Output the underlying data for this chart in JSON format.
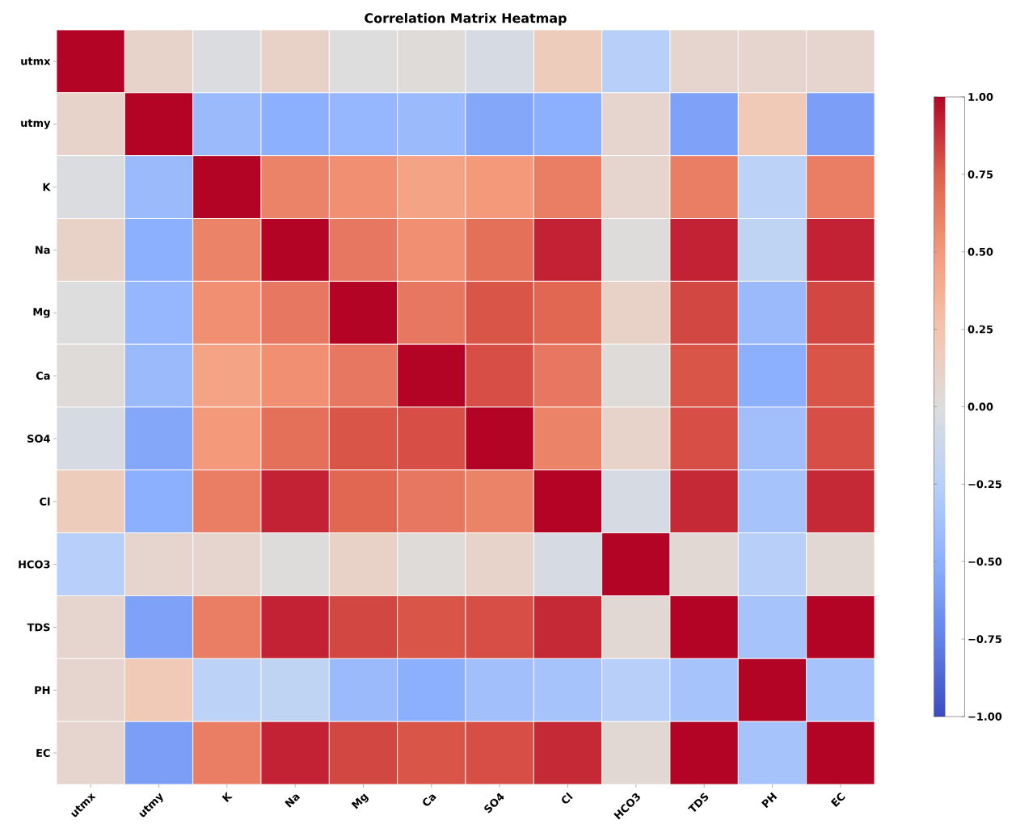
{
  "chart_data": {
    "type": "heatmap",
    "title": "Correlation Matrix Heatmap",
    "categories": [
      "utmx",
      "utmy",
      "K",
      "Na",
      "Mg",
      "Ca",
      "SO4",
      "Cl",
      "HCO3",
      "TDS",
      "PH",
      "EC"
    ],
    "y_categories": [
      "utmx",
      "utmy",
      "K",
      "Na",
      "Mg",
      "Ca",
      "SO4",
      "Cl",
      "HCO3",
      "TDS",
      "PH",
      "EC"
    ],
    "cells": [
      [
        1,
        0.1,
        -0.02,
        0.12,
        0.0,
        0.02,
        -0.05,
        0.17,
        -0.25,
        0.08,
        0.08,
        0.08
      ],
      [
        0.1,
        1,
        -0.42,
        -0.5,
        -0.45,
        -0.42,
        -0.55,
        -0.5,
        0.08,
        -0.58,
        0.2,
        -0.6
      ],
      [
        -0.02,
        -0.42,
        1,
        0.6,
        0.55,
        0.45,
        0.5,
        0.62,
        0.08,
        0.62,
        -0.22,
        0.62
      ],
      [
        0.12,
        -0.5,
        0.6,
        1,
        0.65,
        0.55,
        0.68,
        0.92,
        0.01,
        0.92,
        -0.2,
        0.92
      ],
      [
        0.0,
        -0.45,
        0.55,
        0.65,
        1,
        0.65,
        0.78,
        0.72,
        0.12,
        0.82,
        -0.42,
        0.82
      ],
      [
        0.02,
        -0.42,
        0.45,
        0.55,
        0.65,
        1,
        0.8,
        0.65,
        0.02,
        0.78,
        -0.5,
        0.78
      ],
      [
        -0.05,
        -0.55,
        0.5,
        0.68,
        0.78,
        0.8,
        1,
        0.6,
        0.1,
        0.8,
        -0.38,
        0.8
      ],
      [
        0.17,
        -0.5,
        0.62,
        0.92,
        0.72,
        0.65,
        0.6,
        1,
        -0.05,
        0.9,
        -0.35,
        0.9
      ],
      [
        -0.25,
        0.08,
        0.08,
        0.01,
        0.12,
        0.02,
        0.1,
        -0.05,
        1,
        0.05,
        -0.25,
        0.05
      ],
      [
        0.08,
        -0.58,
        0.62,
        0.92,
        0.82,
        0.78,
        0.8,
        0.9,
        0.05,
        1,
        -0.35,
        1
      ],
      [
        0.08,
        0.2,
        -0.22,
        -0.2,
        -0.42,
        -0.5,
        -0.38,
        -0.35,
        -0.25,
        -0.35,
        1,
        -0.35
      ],
      [
        0.08,
        -0.6,
        0.62,
        0.92,
        0.82,
        0.78,
        0.8,
        0.9,
        0.05,
        1,
        -0.35,
        1
      ]
    ],
    "clim": [
      -1,
      1
    ],
    "cticks": [
      {
        "value": -1,
        "label": "−1.00"
      },
      {
        "value": -0.75,
        "label": "−0.75"
      },
      {
        "value": -0.5,
        "label": "−0.50"
      },
      {
        "value": -0.25,
        "label": "−0.25"
      },
      {
        "value": 0,
        "label": "0.00"
      },
      {
        "value": 0.25,
        "label": "0.25"
      },
      {
        "value": 0.5,
        "label": "0.50"
      },
      {
        "value": 0.75,
        "label": "0.75"
      },
      {
        "value": 1,
        "label": "1.00"
      }
    ]
  }
}
